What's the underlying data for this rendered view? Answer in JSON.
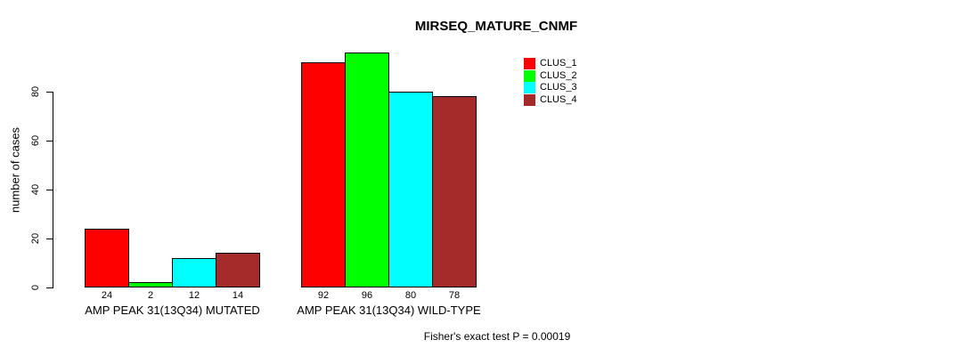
{
  "chart_data": {
    "type": "bar",
    "title": "MIRSEQ_MATURE_CNMF",
    "ylabel": "number of cases",
    "xlabel": "",
    "yticks": [
      0,
      20,
      40,
      60,
      80
    ],
    "ylim": [
      0,
      96
    ],
    "grid": false,
    "legend_position": "top-right",
    "categories": [
      "AMP PEAK 31(13Q34) MUTATED",
      "AMP PEAK 31(13Q34) WILD-TYPE"
    ],
    "series": [
      {
        "name": "CLUS_1",
        "color": "#ff0000",
        "values": [
          24,
          92
        ]
      },
      {
        "name": "CLUS_2",
        "color": "#00ff00",
        "values": [
          2,
          96
        ]
      },
      {
        "name": "CLUS_3",
        "color": "#00ffff",
        "values": [
          12,
          80
        ]
      },
      {
        "name": "CLUS_4",
        "color": "#a52a2a",
        "values": [
          14,
          78
        ]
      }
    ],
    "bar_border_color": "#000000",
    "annotation": "Fisher's exact test P = 0.00019"
  }
}
